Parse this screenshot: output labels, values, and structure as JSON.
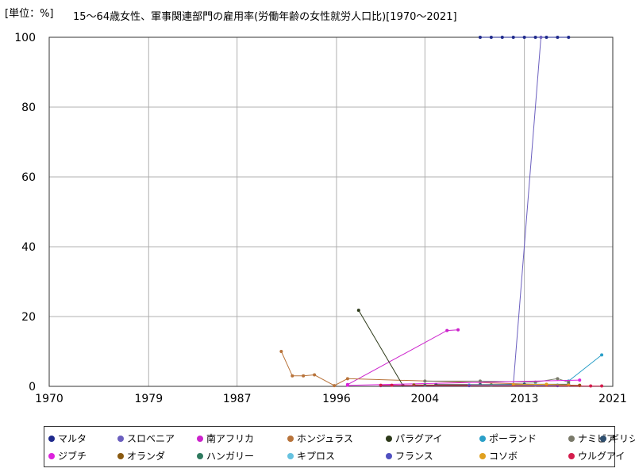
{
  "unit_label": "[単位：%]",
  "chart_data": {
    "type": "line",
    "title": "15〜64歳女性、軍事関連部門の雇用率(労働年齢の女性就労人口比)[1970〜2021]",
    "xlim": [
      1970,
      2021
    ],
    "ylim": [
      0,
      100
    ],
    "x_ticks": [
      1970,
      1979,
      1987,
      1996,
      2004,
      2013,
      2021
    ],
    "y_ticks": [
      0,
      20,
      40,
      60,
      80,
      100
    ],
    "grid": true,
    "legend_position": "bottom",
    "series": [
      {
        "name": "マルタ",
        "color": "#1f2a8c",
        "points": [
          [
            2009,
            100
          ],
          [
            2010,
            100
          ],
          [
            2011,
            100
          ],
          [
            2012,
            100
          ],
          [
            2013,
            100
          ],
          [
            2014,
            100
          ],
          [
            2015,
            100
          ],
          [
            2016,
            100
          ],
          [
            2017,
            100
          ]
        ]
      },
      {
        "name": "スロベニア",
        "color": "#6b5fbf",
        "points": [
          [
            2012,
            0.5
          ],
          [
            2014.5,
            100
          ]
        ]
      },
      {
        "name": "南アフリカ",
        "color": "#cc22cc",
        "points": [
          [
            1997,
            0.5
          ],
          [
            2006,
            16
          ],
          [
            2007,
            16.2
          ]
        ]
      },
      {
        "name": "ホンジュラス",
        "color": "#b8733a",
        "points": [
          [
            1991,
            10
          ],
          [
            1992,
            3
          ],
          [
            1993,
            3
          ],
          [
            1994,
            3.3
          ],
          [
            1995.8,
            0.2
          ],
          [
            1997,
            2.2
          ],
          [
            2018,
            0.2
          ]
        ]
      },
      {
        "name": "パラグアイ",
        "color": "#2d3a1a",
        "points": [
          [
            1998,
            21.8
          ],
          [
            2002,
            0.3
          ]
        ]
      },
      {
        "name": "ポーランド",
        "color": "#2a9fc8",
        "points": [
          [
            2017,
            1.5
          ],
          [
            2020,
            9
          ]
        ]
      },
      {
        "name": "ナミビア",
        "color": "#7a7a6a",
        "points": [
          [
            2004,
            1.5
          ],
          [
            2009,
            1.5
          ],
          [
            2014,
            1.2
          ],
          [
            2016,
            2.2
          ],
          [
            2017,
            1.2
          ]
        ]
      },
      {
        "name": "ギリシャ",
        "color": "#2f4f6f",
        "points": [
          [
            2005,
            0.5
          ],
          [
            2009,
            0.5
          ],
          [
            2013,
            0.6
          ],
          [
            2017,
            0.6
          ]
        ]
      },
      {
        "name": "ジブチ",
        "color": "#dd22dd",
        "points": [
          [
            1997,
            0.3
          ],
          [
            2018,
            1.8
          ]
        ]
      },
      {
        "name": "オランダ",
        "color": "#8a5a10",
        "points": [
          [
            2003,
            0.4
          ],
          [
            2010,
            0.4
          ],
          [
            2015,
            0.4
          ],
          [
            2018,
            0.3
          ]
        ]
      },
      {
        "name": "ハンガリー",
        "color": "#2f7a5f",
        "points": [
          [
            2004,
            0.3
          ],
          [
            2010,
            0.3
          ],
          [
            2016,
            0.3
          ]
        ]
      },
      {
        "name": "キプロス",
        "color": "#66c2e0",
        "points": [
          [
            2008,
            0.4
          ],
          [
            2014,
            0.4
          ],
          [
            2017,
            0.4
          ]
        ]
      },
      {
        "name": "フランス",
        "color": "#5050c0",
        "points": [
          [
            2000,
            0.2
          ],
          [
            2008,
            0.2
          ],
          [
            2016,
            0.2
          ]
        ]
      },
      {
        "name": "コソボ",
        "color": "#e0a020",
        "points": [
          [
            2012,
            0.5
          ],
          [
            2015,
            0.6
          ],
          [
            2017,
            0.4
          ]
        ]
      },
      {
        "name": "ウルグアイ",
        "color": "#d41c4c",
        "points": [
          [
            2000,
            0.3
          ],
          [
            2001,
            0.3
          ],
          [
            2019,
            0.1
          ],
          [
            2020,
            0.1
          ]
        ]
      }
    ]
  }
}
